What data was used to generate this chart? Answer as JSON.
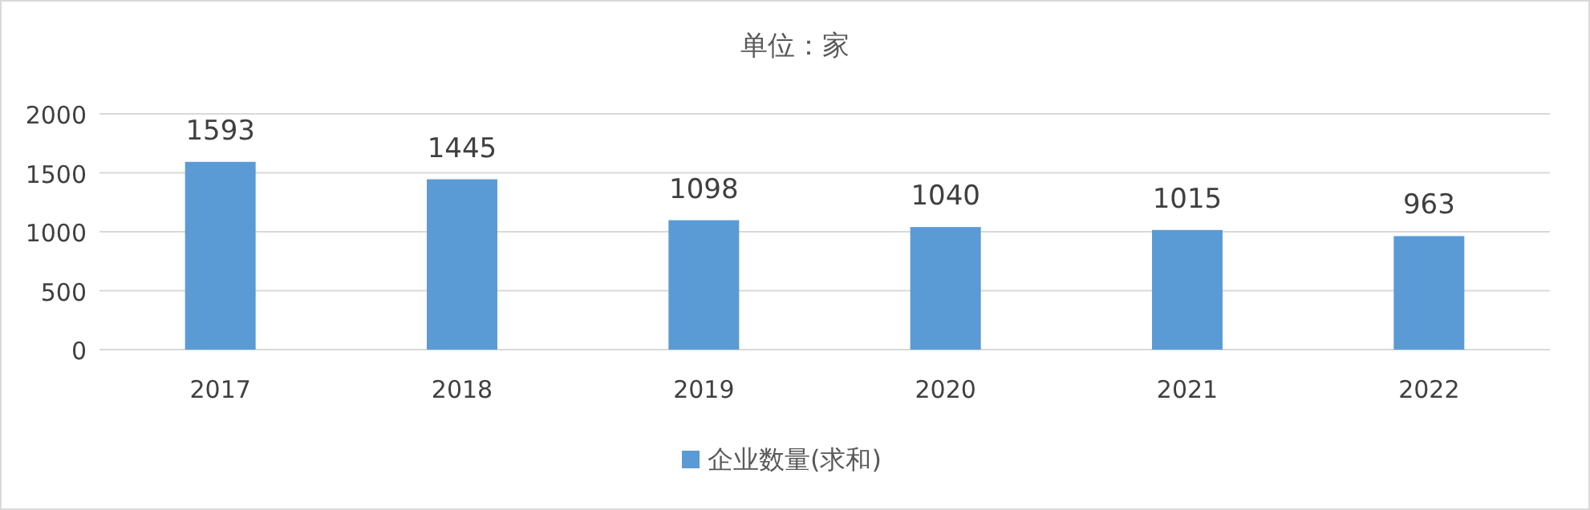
{
  "chart_data": {
    "type": "bar",
    "title": "单位：家",
    "categories": [
      "2017",
      "2018",
      "2019",
      "2020",
      "2021",
      "2022"
    ],
    "series": [
      {
        "name": "企业数量(求和)",
        "color": "#5b9bd5",
        "values": [
          1593,
          1445,
          1098,
          1040,
          1015,
          963
        ]
      }
    ],
    "ylim": [
      0,
      2000
    ],
    "yticks": [
      0,
      500,
      1000,
      1500,
      2000
    ],
    "grid": "y",
    "legend": "bottom",
    "data_labels": true
  }
}
